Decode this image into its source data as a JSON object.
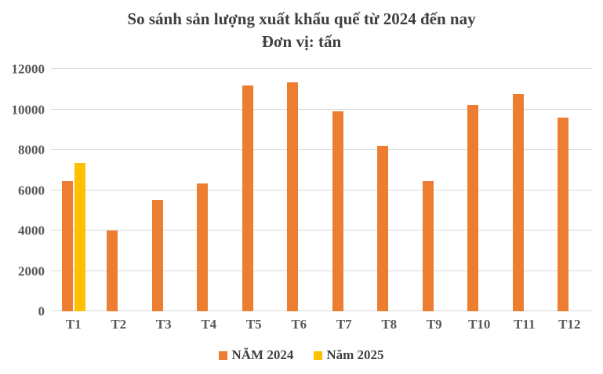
{
  "chart": {
    "title": "So sánh sản lượng xuất khẩu quế từ 2024 đến nay",
    "subtitle": "Đơn vị: tấn"
  },
  "colors": {
    "series_2024": "#ED7D31",
    "series_2025": "#FFC000",
    "gridline": "#D9D9D9",
    "axis_text": "#595959",
    "title_text": "#3F3F3F"
  },
  "chart_data": {
    "type": "bar",
    "title": "So sánh sản lượng xuất khẩu quế từ 2024 đến nay",
    "subtitle": "Đơn vị: tấn",
    "categories": [
      "T1",
      "T2",
      "T3",
      "T4",
      "T5",
      "T6",
      "T7",
      "T8",
      "T9",
      "T10",
      "T11",
      "T12"
    ],
    "series": [
      {
        "name": "NĂM 2024",
        "color": "#ED7D31",
        "values": [
          6450,
          4000,
          5500,
          6350,
          11200,
          11350,
          9900,
          8200,
          6450,
          10200,
          10750,
          9600
        ]
      },
      {
        "name": "Năm 2025",
        "color": "#FFC000",
        "values": [
          7350,
          null,
          null,
          null,
          null,
          null,
          null,
          null,
          null,
          null,
          null,
          null
        ]
      }
    ],
    "xlabel": "",
    "ylabel": "",
    "ylim": [
      0,
      12000
    ],
    "yticks": [
      0,
      2000,
      4000,
      6000,
      8000,
      10000,
      12000
    ],
    "grid": true,
    "legend_position": "bottom"
  }
}
